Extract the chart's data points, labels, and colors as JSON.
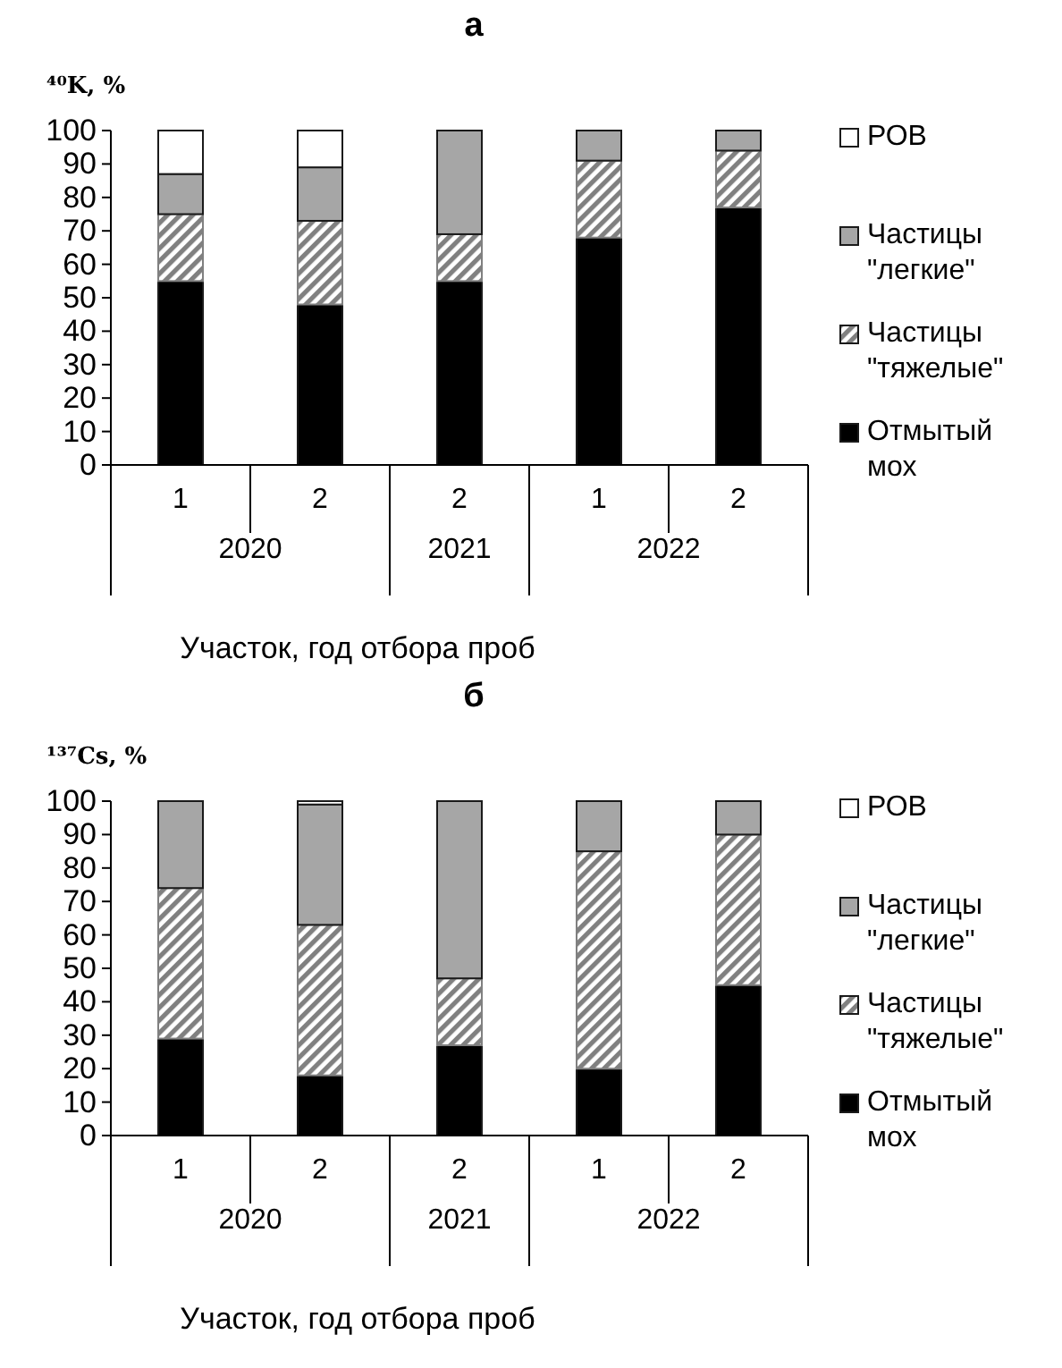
{
  "chart_data": [
    {
      "type": "bar",
      "stacked": true,
      "title": "а",
      "ylabel": "⁴⁰K, %",
      "xlabel": "Участок, год отбора проб",
      "categories": [
        "1",
        "2",
        "2",
        "1",
        "2"
      ],
      "annotations": [
        "2020",
        "2021",
        "2022"
      ],
      "ylim": [
        0,
        100
      ],
      "yticks": [
        0,
        10,
        20,
        30,
        40,
        50,
        60,
        70,
        80,
        90,
        100
      ],
      "legend": "right",
      "series": [
        {
          "name": "Отмытый мох",
          "color": "#000000",
          "values": [
            55,
            48,
            55,
            68,
            77
          ]
        },
        {
          "name": "Частицы \"тяжелые\"",
          "color": "#808080",
          "values": [
            20,
            25,
            14,
            23,
            17
          ]
        },
        {
          "name": "Частицы \"легкие\"",
          "color": "#a6a6a6",
          "values": [
            12,
            16,
            31,
            9,
            6
          ]
        },
        {
          "name": "РОВ",
          "color": "#ffffff",
          "values": [
            13,
            11,
            0,
            0,
            0
          ]
        }
      ]
    },
    {
      "type": "bar",
      "stacked": true,
      "title": "б",
      "ylabel": "¹³⁷Cs, %",
      "xlabel": "Участок, год отбора проб",
      "categories": [
        "1",
        "2",
        "2",
        "1",
        "2"
      ],
      "annotations": [
        "2020",
        "2021",
        "2022"
      ],
      "ylim": [
        0,
        100
      ],
      "yticks": [
        0,
        10,
        20,
        30,
        40,
        50,
        60,
        70,
        80,
        90,
        100
      ],
      "legend": "right",
      "series": [
        {
          "name": "Отмытый мох",
          "color": "#000000",
          "values": [
            29,
            18,
            27,
            20,
            45
          ]
        },
        {
          "name": "Частицы \"тяжелые\"",
          "color": "#808080",
          "values": [
            45,
            45,
            20,
            65,
            45
          ]
        },
        {
          "name": "Частицы \"легкие\"",
          "color": "#a6a6a6",
          "values": [
            26,
            36,
            53,
            15,
            10
          ]
        },
        {
          "name": "РОВ",
          "color": "#ffffff",
          "values": [
            0,
            1,
            0,
            0,
            0
          ]
        }
      ]
    }
  ]
}
